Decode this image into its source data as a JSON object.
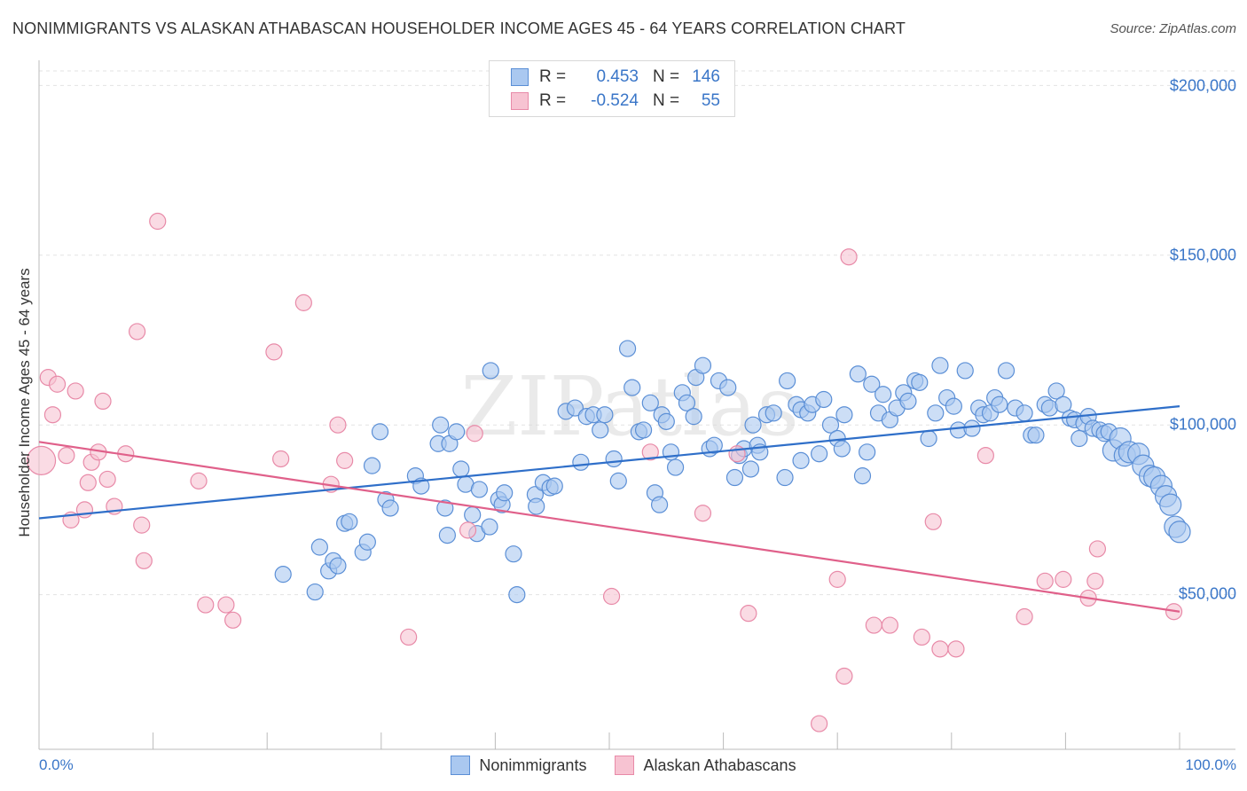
{
  "header": {
    "title": "NONIMMIGRANTS VS ALASKAN ATHABASCAN HOUSEHOLDER INCOME AGES 45 - 64 YEARS CORRELATION CHART",
    "source": "Source: ZipAtlas.com"
  },
  "legend_top": {
    "rows": [
      {
        "r_label": "R =",
        "r_value": "0.453",
        "n_label": "N =",
        "n_value": "146",
        "color": "#aac8f0"
      },
      {
        "r_label": "R =",
        "r_value": "-0.524",
        "n_label": "N =",
        "n_value": "55",
        "color": "#f7b8cb"
      }
    ]
  },
  "legend_bottom": {
    "items": [
      {
        "label": "Nonimmigrants",
        "color": "#aac8f0"
      },
      {
        "label": "Alaskan Athabascans",
        "color": "#f7b8cb"
      }
    ]
  },
  "colors": {
    "blue_fill": "#aac8f0",
    "blue_stroke": "#5b8fd6",
    "blue_line": "#2f6fc9",
    "pink_fill": "#f7c3d2",
    "pink_stroke": "#e88aa8",
    "pink_line": "#e0608a",
    "tick_text": "#3a76c8",
    "grid": "#e3e3e3"
  },
  "chart_data": {
    "type": "scatter",
    "title": "NONIMMIGRANTS VS ALASKAN ATHABASCAN HOUSEHOLDER INCOME AGES 45 - 64 YEARS CORRELATION CHART",
    "xlabel": "",
    "ylabel": "Householder Income Ages 45 - 64 years",
    "x_tick_labels": [
      "0.0%",
      "100.0%"
    ],
    "y_tick_labels": [
      "$50,000",
      "$100,000",
      "$150,000",
      "$200,000"
    ],
    "y_ticks": [
      50000,
      100000,
      150000,
      200000
    ],
    "xlim": [
      0,
      100
    ],
    "ylim": [
      6000,
      208000
    ],
    "grid": true,
    "watermark": "ZIPatlas",
    "series": [
      {
        "name": "Nonimmigrants",
        "color": "#aac8f0",
        "trend": {
          "x": [
            0,
            100
          ],
          "y": [
            72500,
            105500
          ]
        },
        "points": [
          [
            21.4,
            56000
          ],
          [
            24.2,
            50800
          ],
          [
            24.6,
            64000
          ],
          [
            25.4,
            57000
          ],
          [
            25.8,
            60000
          ],
          [
            26.2,
            58500
          ],
          [
            26.8,
            71000
          ],
          [
            27.2,
            71500
          ],
          [
            28.4,
            62500
          ],
          [
            28.8,
            65500
          ],
          [
            29.2,
            88000
          ],
          [
            29.9,
            98000
          ],
          [
            30.4,
            78000
          ],
          [
            30.8,
            75500
          ],
          [
            33.0,
            85000
          ],
          [
            33.5,
            82000
          ],
          [
            35.0,
            94500
          ],
          [
            35.2,
            100000
          ],
          [
            36.0,
            94500
          ],
          [
            36.6,
            98000
          ],
          [
            35.6,
            75500
          ],
          [
            35.8,
            67500
          ],
          [
            37.0,
            87000
          ],
          [
            37.4,
            82500
          ],
          [
            38.0,
            73500
          ],
          [
            38.4,
            68000
          ],
          [
            38.6,
            81000
          ],
          [
            39.5,
            70000
          ],
          [
            39.6,
            116000
          ],
          [
            40.3,
            78000
          ],
          [
            40.6,
            76500
          ],
          [
            40.8,
            80000
          ],
          [
            41.6,
            62000
          ],
          [
            41.9,
            50000
          ],
          [
            43.5,
            79500
          ],
          [
            43.6,
            76000
          ],
          [
            44.2,
            83000
          ],
          [
            44.8,
            81500
          ],
          [
            45.2,
            82000
          ],
          [
            46.2,
            104000
          ],
          [
            47.0,
            105000
          ],
          [
            47.5,
            89000
          ],
          [
            48.0,
            102500
          ],
          [
            48.6,
            103000
          ],
          [
            49.2,
            98500
          ],
          [
            49.6,
            103000
          ],
          [
            50.4,
            90000
          ],
          [
            50.8,
            83500
          ],
          [
            51.6,
            122500
          ],
          [
            52.0,
            111000
          ],
          [
            52.6,
            98000
          ],
          [
            53.0,
            98500
          ],
          [
            53.6,
            106500
          ],
          [
            54.0,
            80000
          ],
          [
            54.4,
            76500
          ],
          [
            54.6,
            103000
          ],
          [
            55.0,
            101000
          ],
          [
            55.4,
            92000
          ],
          [
            55.8,
            87500
          ],
          [
            56.4,
            109500
          ],
          [
            56.8,
            106500
          ],
          [
            57.4,
            102500
          ],
          [
            57.6,
            114000
          ],
          [
            58.2,
            117500
          ],
          [
            58.8,
            93000
          ],
          [
            59.2,
            94000
          ],
          [
            59.6,
            113000
          ],
          [
            60.4,
            111000
          ],
          [
            61.0,
            84500
          ],
          [
            61.4,
            91000
          ],
          [
            61.8,
            93000
          ],
          [
            62.6,
            100000
          ],
          [
            63.0,
            94000
          ],
          [
            63.2,
            92000
          ],
          [
            63.8,
            103000
          ],
          [
            64.4,
            103500
          ],
          [
            65.4,
            84500
          ],
          [
            65.6,
            113000
          ],
          [
            66.4,
            106000
          ],
          [
            66.8,
            104500
          ],
          [
            67.4,
            103500
          ],
          [
            67.8,
            106000
          ],
          [
            68.4,
            91500
          ],
          [
            68.8,
            107500
          ],
          [
            69.4,
            100000
          ],
          [
            70.0,
            96000
          ],
          [
            70.4,
            93000
          ],
          [
            70.6,
            103000
          ],
          [
            71.8,
            115000
          ],
          [
            72.2,
            85000
          ],
          [
            72.6,
            92000
          ],
          [
            73.0,
            112000
          ],
          [
            73.6,
            103500
          ],
          [
            74.0,
            109000
          ],
          [
            74.6,
            101500
          ],
          [
            75.2,
            105000
          ],
          [
            75.8,
            109500
          ],
          [
            76.2,
            107000
          ],
          [
            76.8,
            113000
          ],
          [
            77.2,
            112500
          ],
          [
            78.0,
            96000
          ],
          [
            78.6,
            103500
          ],
          [
            79.0,
            117500
          ],
          [
            79.6,
            108000
          ],
          [
            80.2,
            105500
          ],
          [
            80.6,
            98500
          ],
          [
            81.2,
            116000
          ],
          [
            81.8,
            99000
          ],
          [
            82.4,
            105000
          ],
          [
            82.8,
            103000
          ],
          [
            83.4,
            103500
          ],
          [
            83.8,
            108000
          ],
          [
            84.2,
            106000
          ],
          [
            84.8,
            116000
          ],
          [
            85.6,
            105000
          ],
          [
            86.4,
            103500
          ],
          [
            87.0,
            97000
          ],
          [
            87.4,
            97000
          ],
          [
            88.2,
            106000
          ],
          [
            88.6,
            105000
          ],
          [
            89.2,
            110000
          ],
          [
            89.8,
            106000
          ],
          [
            90.4,
            102000
          ],
          [
            90.8,
            101500
          ],
          [
            91.2,
            96000
          ],
          [
            91.6,
            100500
          ],
          [
            92.0,
            102500
          ],
          [
            92.4,
            99000
          ],
          [
            93.0,
            98500
          ],
          [
            93.4,
            97500
          ],
          [
            93.8,
            98000
          ],
          [
            94.2,
            92500
          ],
          [
            94.8,
            96000
          ],
          [
            95.2,
            91000
          ],
          [
            95.6,
            92000
          ],
          [
            96.4,
            91500
          ],
          [
            96.8,
            88000
          ],
          [
            97.4,
            85000
          ],
          [
            97.8,
            84500
          ],
          [
            98.4,
            82000
          ],
          [
            98.8,
            79000
          ],
          [
            99.2,
            76500
          ],
          [
            99.6,
            70000
          ],
          [
            100.0,
            68500
          ],
          [
            62.4,
            87000
          ],
          [
            66.8,
            89500
          ]
        ]
      },
      {
        "name": "Alaskan Athabascans",
        "color": "#f7b8cb",
        "trend": {
          "x": [
            0,
            100
          ],
          "y": [
            95000,
            45000
          ]
        },
        "points": [
          [
            0.2,
            89500
          ],
          [
            0.8,
            114000
          ],
          [
            1.2,
            103000
          ],
          [
            1.6,
            112000
          ],
          [
            2.4,
            91000
          ],
          [
            2.8,
            72000
          ],
          [
            3.2,
            110000
          ],
          [
            4.0,
            75000
          ],
          [
            4.3,
            83000
          ],
          [
            4.6,
            89000
          ],
          [
            5.2,
            92000
          ],
          [
            5.6,
            107000
          ],
          [
            6.0,
            84000
          ],
          [
            6.6,
            76000
          ],
          [
            7.6,
            91500
          ],
          [
            8.6,
            127500
          ],
          [
            9.0,
            70500
          ],
          [
            9.2,
            60000
          ],
          [
            10.4,
            160000
          ],
          [
            14.0,
            83500
          ],
          [
            14.6,
            47000
          ],
          [
            16.4,
            47000
          ],
          [
            17.0,
            42500
          ],
          [
            20.6,
            121500
          ],
          [
            21.2,
            90000
          ],
          [
            23.2,
            136000
          ],
          [
            25.6,
            82500
          ],
          [
            26.2,
            100000
          ],
          [
            26.8,
            89500
          ],
          [
            32.4,
            37500
          ],
          [
            37.6,
            69000
          ],
          [
            38.2,
            97500
          ],
          [
            50.2,
            49500
          ],
          [
            53.6,
            92000
          ],
          [
            58.2,
            74000
          ],
          [
            61.2,
            91500
          ],
          [
            62.2,
            44500
          ],
          [
            70.0,
            54500
          ],
          [
            70.6,
            26000
          ],
          [
            71.0,
            149500
          ],
          [
            73.2,
            41000
          ],
          [
            74.6,
            41000
          ],
          [
            77.4,
            37500
          ],
          [
            78.4,
            71500
          ],
          [
            79.0,
            34000
          ],
          [
            80.4,
            34000
          ],
          [
            83.0,
            91000
          ],
          [
            86.4,
            43500
          ],
          [
            88.2,
            54000
          ],
          [
            89.8,
            54500
          ],
          [
            92.0,
            49000
          ],
          [
            92.6,
            54000
          ],
          [
            92.8,
            63500
          ],
          [
            99.5,
            45000
          ],
          [
            68.4,
            12000
          ]
        ]
      }
    ]
  }
}
